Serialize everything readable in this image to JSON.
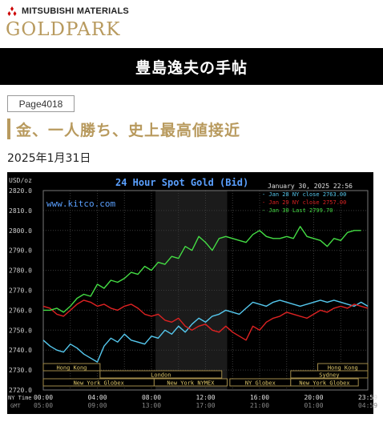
{
  "header": {
    "corporate_name": "MITSUBISHI MATERIALS",
    "brand": "GOLDPARK",
    "banner_title": "豊島逸夫の手帖"
  },
  "article": {
    "page_tag": "Page4018",
    "title": "金、一人勝ち、史上最高値接近",
    "date": "2025年1月31日"
  },
  "colors": {
    "brand_gold": "#b89a5e",
    "chart_bg": "#000000",
    "series_green": "#44dd44",
    "series_red": "#dd2222",
    "series_blue": "#55c8ee"
  },
  "chart_data": {
    "type": "line",
    "title": "24 Hour Spot Gold (Bid)",
    "ylabel": "USD/oz",
    "timestamp": "January 30, 2025 22:56",
    "watermark": "www.kitco.com",
    "ylim": [
      2720,
      2820
    ],
    "y_ticks": [
      "2820.0",
      "2810.0",
      "2800.0",
      "2790.0",
      "2780.0",
      "2770.0",
      "2760.0",
      "2750.0",
      "2740.0",
      "2730.0",
      "2720.0"
    ],
    "x_ticks": [
      "00:00",
      "04:00",
      "08:00",
      "12:00",
      "16:00",
      "20:00",
      "23:59"
    ],
    "gmt_ticks": [
      "05:00",
      "09:00",
      "13:00",
      "17:00",
      "21:00",
      "01:00",
      "04:59"
    ],
    "x_axis_row_labels": [
      "NY Time",
      "GMT"
    ],
    "sessions": [
      "Hong Kong",
      "London",
      "New York Globex",
      "New York NYMEX",
      "NY Globex",
      "Sydney",
      "Hong Kong",
      "New York Globex"
    ],
    "legend": [
      {
        "text": "Jan 28 NY close 2763.00",
        "color": "#55c8ee"
      },
      {
        "text": "Jan 29 NY close 2757.00",
        "color": "#dd2222"
      },
      {
        "text": "Jan 30 Last 2799.70",
        "color": "#44dd44"
      }
    ],
    "series": [
      {
        "name": "Jan 28",
        "color": "#55c8ee",
        "x": [
          0,
          0.5,
          1,
          1.5,
          2,
          2.5,
          3,
          3.5,
          4,
          4.5,
          5,
          5.5,
          6,
          6.5,
          7,
          7.5,
          8,
          8.5,
          9,
          9.5,
          10,
          10.5,
          11,
          11.5,
          12,
          12.5,
          13,
          13.5,
          14,
          14.5,
          15,
          15.5,
          16,
          16.5,
          17,
          17.5,
          18,
          18.5,
          19,
          19.5,
          20,
          20.5,
          21,
          21.5,
          22,
          22.5,
          23,
          23.5,
          24
        ],
        "values": [
          2745,
          2742,
          2740,
          2739,
          2743,
          2741,
          2738,
          2736,
          2734,
          2742,
          2746,
          2744,
          2748,
          2745,
          2744,
          2743,
          2747,
          2746,
          2750,
          2748,
          2752,
          2749,
          2753,
          2756,
          2754,
          2757,
          2758,
          2760,
          2759,
          2758,
          2761,
          2764,
          2763,
          2762,
          2764,
          2765,
          2764,
          2763,
          2762,
          2763,
          2764,
          2765,
          2764,
          2765,
          2764,
          2763,
          2762,
          2764,
          2762
        ]
      },
      {
        "name": "Jan 29",
        "color": "#dd2222",
        "x": [
          0,
          0.5,
          1,
          1.5,
          2,
          2.5,
          3,
          3.5,
          4,
          4.5,
          5,
          5.5,
          6,
          6.5,
          7,
          7.5,
          8,
          8.5,
          9,
          9.5,
          10,
          10.5,
          11,
          11.5,
          12,
          12.5,
          13,
          13.5,
          14,
          14.5,
          15,
          15.5,
          16,
          16.5,
          17,
          17.5,
          18,
          18.5,
          19,
          19.5,
          20,
          20.5,
          21,
          21.5,
          22,
          22.5,
          23,
          23.5,
          24
        ],
        "values": [
          2762,
          2761,
          2758,
          2757,
          2760,
          2763,
          2765,
          2764,
          2762,
          2763,
          2761,
          2760,
          2762,
          2763,
          2761,
          2758,
          2757,
          2758,
          2755,
          2754,
          2756,
          2752,
          2750,
          2752,
          2753,
          2750,
          2749,
          2752,
          2749,
          2747,
          2745,
          2752,
          2750,
          2754,
          2756,
          2757,
          2759,
          2758,
          2757,
          2756,
          2758,
          2760,
          2759,
          2761,
          2762,
          2761,
          2763,
          2762,
          2761
        ]
      },
      {
        "name": "Jan 30",
        "color": "#44dd44",
        "x": [
          0,
          0.5,
          1,
          1.5,
          2,
          2.5,
          3,
          3.5,
          4,
          4.5,
          5,
          5.5,
          6,
          6.5,
          7,
          7.5,
          8,
          8.5,
          9,
          9.5,
          10,
          10.5,
          11,
          11.5,
          12,
          12.5,
          13,
          13.5,
          14,
          14.5,
          15,
          15.5,
          16,
          16.5,
          17,
          17.5,
          18,
          18.5,
          19,
          19.5,
          20,
          20.5,
          21,
          21.5,
          22,
          22.5,
          23,
          23.5
        ],
        "values": [
          2760,
          2760,
          2761,
          2759,
          2762,
          2766,
          2768,
          2767,
          2773,
          2771,
          2775,
          2774,
          2776,
          2779,
          2778,
          2782,
          2780,
          2784,
          2783,
          2787,
          2786,
          2792,
          2790,
          2797,
          2794,
          2790,
          2796,
          2797,
          2796,
          2795,
          2794,
          2798,
          2800,
          2797,
          2796,
          2796,
          2797,
          2796,
          2802,
          2797,
          2796,
          2795,
          2792,
          2796,
          2795,
          2799,
          2800,
          2800
        ]
      }
    ]
  }
}
